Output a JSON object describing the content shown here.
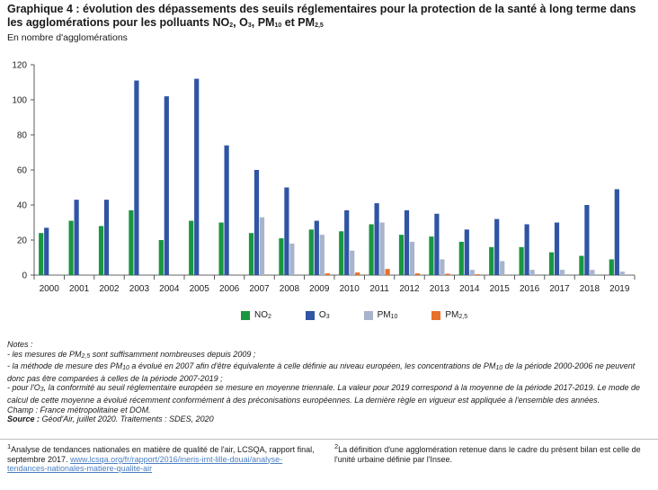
{
  "title_parts": {
    "main": "Graphique 4 : évolution des dépassements des seuils réglementaires pour la protection de la santé à long terme dans les agglomérations pour les polluants NO",
    "no2_sub": "2",
    "sep1": ", O",
    "o3_sub": "3",
    "sep2": ", PM",
    "pm10_sub": "10",
    "sep3": " et PM",
    "pm25_sub": "2,5"
  },
  "unit_label": "En nombre d'agglomérations",
  "chart_data": {
    "type": "bar",
    "categories": [
      "2000",
      "2001",
      "2002",
      "2003",
      "2004",
      "2005",
      "2006",
      "2007",
      "2008",
      "2009",
      "2010",
      "2011",
      "2012",
      "2013",
      "2014",
      "2015",
      "2016",
      "2017",
      "2018",
      "2019"
    ],
    "ylim": [
      0,
      120
    ],
    "yticks": [
      0,
      20,
      40,
      60,
      80,
      100,
      120
    ],
    "grid": false,
    "legend_position": "bottom",
    "series": [
      {
        "name": "NO2",
        "color": "#1a9641",
        "values": [
          24,
          31,
          28,
          37,
          20,
          31,
          30,
          24,
          21,
          26,
          25,
          29,
          23,
          22,
          19,
          16,
          16,
          13,
          11,
          9
        ]
      },
      {
        "name": "O3",
        "color": "#2f55a4",
        "values": [
          27,
          43,
          43,
          111,
          102,
          112,
          74,
          60,
          50,
          31,
          37,
          41,
          37,
          35,
          26,
          32,
          29,
          30,
          40,
          49
        ]
      },
      {
        "name": "PM10",
        "color": "#a8b4cc",
        "values": [
          0,
          0,
          0,
          0,
          0,
          0,
          0,
          33,
          18,
          23,
          14,
          30,
          19,
          9,
          3,
          8,
          3,
          3,
          3,
          2
        ]
      },
      {
        "name": "PM2,5",
        "color": "#e8702a",
        "values": [
          0,
          0,
          0,
          0,
          0,
          0,
          0,
          0,
          0,
          1,
          1.5,
          3.5,
          1,
          0.8,
          0.5,
          0,
          0,
          0,
          0,
          0
        ]
      }
    ]
  },
  "legend": [
    {
      "base": "NO",
      "sub": "2",
      "color": "#1a9641"
    },
    {
      "base": "O",
      "sub": "3",
      "color": "#2f55a4"
    },
    {
      "base": "PM",
      "sub": "10",
      "color": "#a8b4cc"
    },
    {
      "base": "PM",
      "sub": "2,5",
      "color": "#e8702a"
    }
  ],
  "notes": {
    "heading": "Notes :",
    "line1_a": "- les mesures de PM",
    "line1_sub": "2,5",
    "line1_b": " sont suffisamment nombreuses depuis 2009 ;",
    "line2_a": "- la méthode de mesure des PM",
    "line2_sub": "10",
    "line2_b": " a évolué en 2007 afin d'être équivalente à celle définie au niveau européen, les concentrations de PM",
    "line2_sub2": "10",
    "line2_c": " de la période 2000-2006 ne peuvent donc pas être comparées à celles de la période 2007-2019 ;",
    "line3_a": "- pour l'O",
    "line3_sub": "3",
    "line3_b": ", la conformité au seuil réglementaire européen se mesure en moyenne triennale. La valeur pour 2019 correspond à la moyenne de la période 2017-2019. Le mode de calcul de cette moyenne a évolué récemment conformément à des préconisations européennes. La dernière règle en vigueur est appliquée à l'ensemble des années.",
    "champ": "Champ : France métropolitaine et DOM.",
    "source_label": "Source :",
    "source_text": " Géod'Air, juillet 2020. Traitements : SDES, 2020"
  },
  "footnotes": {
    "fn1_sup": "1",
    "fn1_text": "Analyse de tendances nationales en matière de qualité de l'air, LCSQA, rapport final, septembre 2017.",
    "fn1_link": "www.lcsqa.org/fr/rapport/2016/ineris-imt-lille-douai/analyse-tendances-nationales-matiere-qualite-air",
    "fn2_sup": "2",
    "fn2_text": "La définition d'une agglomération retenue dans le cadre du présent bilan est celle de l'unité urbaine définie par l'Insee."
  }
}
